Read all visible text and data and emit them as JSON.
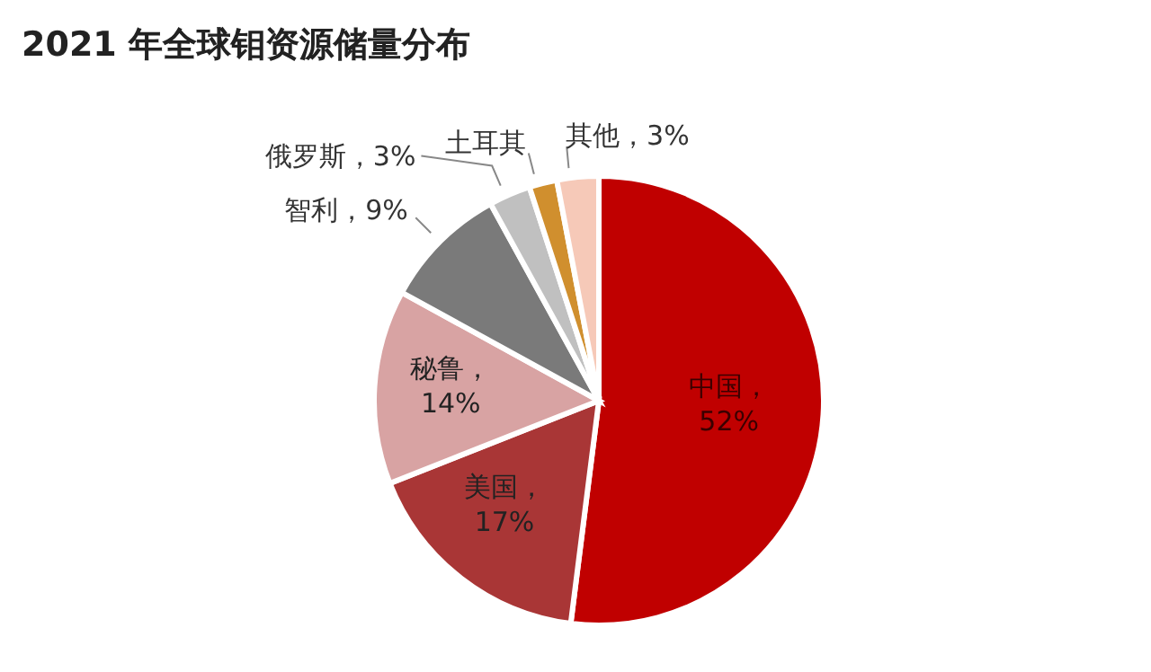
{
  "chart_data": {
    "type": "pie",
    "title": "2021 年全球钼资源储量分布",
    "categories": [
      "中国",
      "美国",
      "秘鲁",
      "智利",
      "俄罗斯",
      "土耳其",
      "其他"
    ],
    "values": [
      52,
      17,
      14,
      9,
      3,
      2,
      3
    ],
    "value_labels": [
      "，52%",
      "，17%",
      "，14%",
      "，9%",
      "，3%",
      null,
      "，3%"
    ],
    "colors": [
      "#c00000",
      "#a93636",
      "#d8a3a3",
      "#7a7a7a",
      "#c0c0c0",
      "#d08f2e",
      "#f6c9b8"
    ],
    "legend": false
  }
}
